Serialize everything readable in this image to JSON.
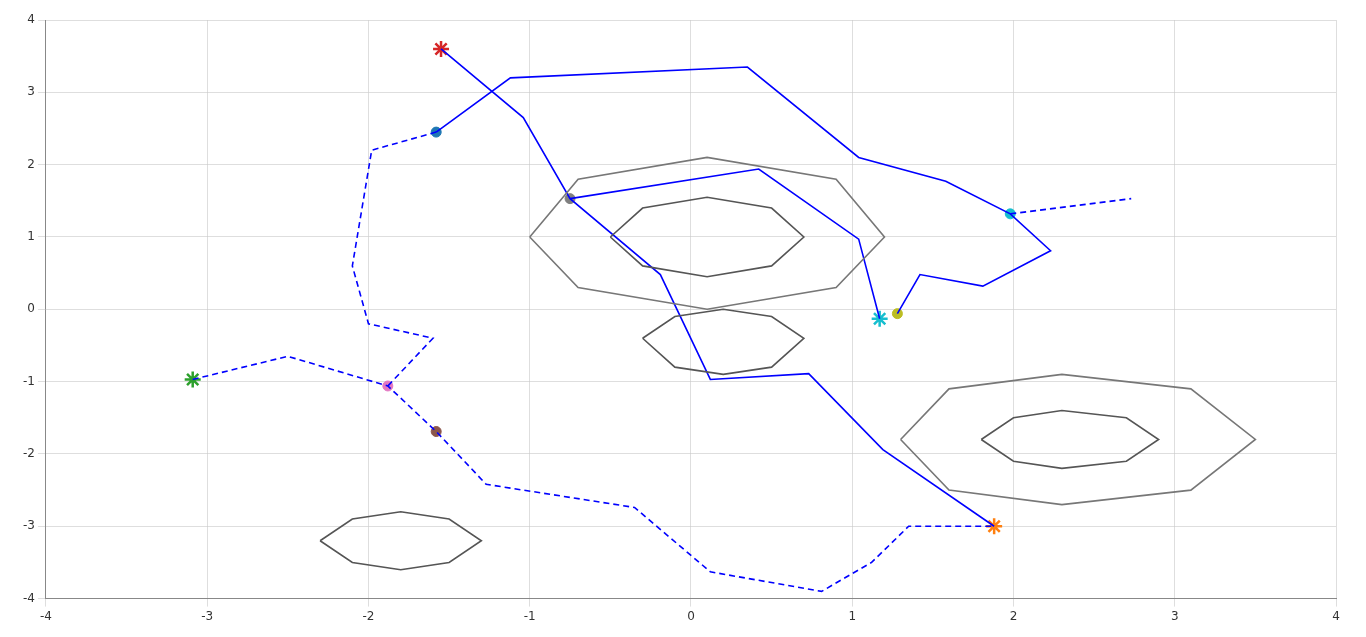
{
  "chart_data": {
    "type": "scatter",
    "xlim": [
      -4,
      4
    ],
    "ylim": [
      -4,
      4
    ],
    "xticks": [
      -4,
      -3,
      -2,
      -1,
      0,
      1,
      2,
      3,
      4
    ],
    "yticks": [
      -4,
      -3,
      -2,
      -1,
      0,
      1,
      2,
      3,
      4
    ],
    "grid": true,
    "series": [
      {
        "type": "line",
        "color": "#555555",
        "line_style": "solid",
        "values": [
          [
            -0.5,
            1.0
          ],
          [
            -0.3,
            1.4
          ],
          [
            0.1,
            1.55
          ],
          [
            0.5,
            1.4
          ],
          [
            0.7,
            1.0
          ],
          [
            0.5,
            0.6
          ],
          [
            0.1,
            0.45
          ],
          [
            -0.3,
            0.6
          ],
          [
            -0.5,
            1.0
          ]
        ]
      },
      {
        "type": "line",
        "color": "#777777",
        "line_style": "solid",
        "values": [
          [
            -1.0,
            1.0
          ],
          [
            -0.7,
            1.8
          ],
          [
            0.1,
            2.1
          ],
          [
            0.9,
            1.8
          ],
          [
            1.2,
            1.0
          ],
          [
            0.9,
            0.3
          ],
          [
            0.1,
            0.0
          ],
          [
            -0.7,
            0.3
          ],
          [
            -1.0,
            1.0
          ]
        ]
      },
      {
        "type": "line",
        "color": "#555555",
        "line_style": "solid",
        "values": [
          [
            -0.3,
            -0.4
          ],
          [
            -0.1,
            -0.1
          ],
          [
            0.2,
            0.0
          ],
          [
            0.5,
            -0.1
          ],
          [
            0.7,
            -0.4
          ],
          [
            0.5,
            -0.8
          ],
          [
            0.2,
            -0.9
          ],
          [
            -0.1,
            -0.8
          ],
          [
            -0.3,
            -0.4
          ]
        ]
      },
      {
        "type": "line",
        "color": "#555555",
        "line_style": "solid",
        "values": [
          [
            1.8,
            -1.8
          ],
          [
            2.0,
            -1.5
          ],
          [
            2.3,
            -1.4
          ],
          [
            2.7,
            -1.5
          ],
          [
            2.9,
            -1.8
          ],
          [
            2.7,
            -2.1
          ],
          [
            2.3,
            -2.2
          ],
          [
            2.0,
            -2.1
          ],
          [
            1.8,
            -1.8
          ]
        ]
      },
      {
        "type": "line",
        "color": "#777777",
        "line_style": "solid",
        "values": [
          [
            1.3,
            -1.8
          ],
          [
            1.6,
            -1.1
          ],
          [
            2.3,
            -0.9
          ],
          [
            3.1,
            -1.1
          ],
          [
            3.5,
            -1.8
          ],
          [
            3.1,
            -2.5
          ],
          [
            2.3,
            -2.7
          ],
          [
            1.6,
            -2.5
          ],
          [
            1.3,
            -1.8
          ]
        ]
      },
      {
        "type": "line",
        "color": "#555555",
        "line_style": "solid",
        "values": [
          [
            -2.3,
            -3.2
          ],
          [
            -2.1,
            -2.9
          ],
          [
            -1.8,
            -2.8
          ],
          [
            -1.5,
            -2.9
          ],
          [
            -1.3,
            -3.2
          ],
          [
            -1.5,
            -3.5
          ],
          [
            -1.8,
            -3.6
          ],
          [
            -2.1,
            -3.5
          ],
          [
            -2.3,
            -3.2
          ]
        ]
      },
      {
        "type": "line",
        "color": "#0000ff",
        "line_style": "solid",
        "values": [
          [
            -1.55,
            3.6
          ],
          [
            -1.04,
            2.65
          ],
          [
            -0.75,
            1.53
          ],
          [
            -0.19,
            0.48
          ],
          [
            0.12,
            -0.97
          ],
          [
            0.73,
            -0.89
          ],
          [
            1.19,
            -1.94
          ],
          [
            1.88,
            -3.0
          ]
        ]
      },
      {
        "type": "line",
        "color": "#0000ff",
        "line_style": "dashed",
        "values": [
          [
            -3.09,
            -0.97
          ],
          [
            -2.5,
            -0.65
          ],
          [
            -1.88,
            -1.06
          ],
          [
            -1.58,
            -1.69
          ],
          [
            -1.27,
            -2.42
          ],
          [
            -0.35,
            -2.74
          ],
          [
            0.12,
            -3.63
          ],
          [
            0.81,
            -3.9
          ],
          [
            1.12,
            -3.5
          ],
          [
            1.35,
            -3.0
          ],
          [
            1.88,
            -3.0
          ]
        ]
      },
      {
        "type": "line",
        "color": "#0000ff",
        "line_style": "dashed",
        "values": [
          [
            -1.58,
            2.45
          ],
          [
            -1.98,
            2.2
          ],
          [
            -2.1,
            0.6
          ],
          [
            -2.0,
            -0.2
          ],
          [
            -1.6,
            -0.4
          ],
          [
            -1.88,
            -1.06
          ]
        ]
      },
      {
        "type": "line",
        "color": "#0000ff",
        "line_style": "solid",
        "values": [
          [
            -1.58,
            2.45
          ],
          [
            -1.12,
            3.2
          ],
          [
            0.35,
            3.35
          ],
          [
            1.04,
            2.1
          ],
          [
            1.58,
            1.77
          ],
          [
            1.98,
            1.32
          ],
          [
            2.23,
            0.81
          ],
          [
            1.81,
            0.32
          ],
          [
            1.42,
            0.48
          ],
          [
            1.28,
            -0.06
          ]
        ]
      },
      {
        "type": "line",
        "color": "#0000ff",
        "line_style": "solid",
        "values": [
          [
            -0.75,
            1.53
          ],
          [
            0.42,
            1.94
          ],
          [
            1.04,
            0.97
          ],
          [
            1.17,
            -0.13
          ]
        ]
      },
      {
        "type": "line",
        "color": "#0000ff",
        "line_style": "dashed",
        "values": [
          [
            1.98,
            1.32
          ],
          [
            2.73,
            1.53
          ]
        ]
      },
      {
        "type": "scatter",
        "color": "#d62728",
        "marker": "star",
        "values": [
          [
            -1.55,
            3.6
          ]
        ]
      },
      {
        "type": "scatter",
        "color": "#2ca02c",
        "marker": "star",
        "values": [
          [
            -3.09,
            -0.97
          ]
        ]
      },
      {
        "type": "scatter",
        "color": "#ff7f0e",
        "marker": "star",
        "values": [
          [
            1.88,
            -3.0
          ]
        ]
      },
      {
        "type": "scatter",
        "color": "#17becf",
        "marker": "star",
        "values": [
          [
            1.17,
            -0.13
          ]
        ]
      },
      {
        "type": "scatter",
        "color": "#1f77b4",
        "marker": "circle",
        "values": [
          [
            -1.58,
            2.45
          ]
        ]
      },
      {
        "type": "scatter",
        "color": "#7f7f7f",
        "marker": "circle",
        "values": [
          [
            -0.75,
            1.53
          ]
        ]
      },
      {
        "type": "scatter",
        "color": "#17becf",
        "marker": "circle",
        "values": [
          [
            1.98,
            1.32
          ]
        ]
      },
      {
        "type": "scatter",
        "color": "#bcbd22",
        "marker": "circle",
        "values": [
          [
            1.28,
            -0.06
          ]
        ]
      },
      {
        "type": "scatter",
        "color": "#e377c2",
        "marker": "circle",
        "values": [
          [
            -1.88,
            -1.06
          ]
        ]
      },
      {
        "type": "scatter",
        "color": "#8c564b",
        "marker": "circle",
        "values": [
          [
            -1.58,
            -1.69
          ]
        ]
      }
    ]
  }
}
